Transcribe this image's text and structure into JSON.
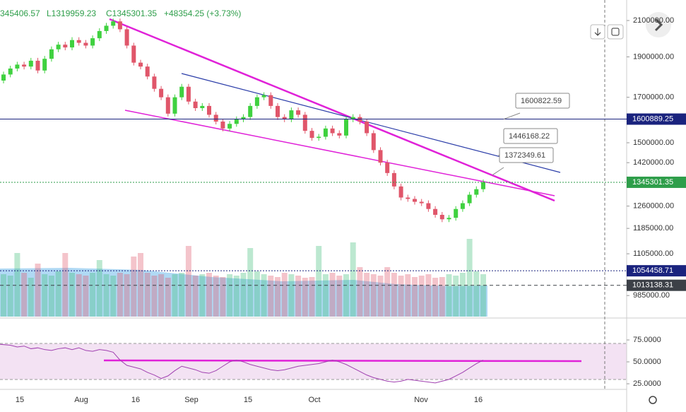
{
  "chart_data": {
    "type": "candlestick",
    "header": [
      "345406.57",
      "L1319959.23",
      "C1345301.35",
      "+48354.25 (+3.73%)"
    ],
    "first_open": 1780000,
    "closes": [
      1810000,
      1840000,
      1860000,
      1850000,
      1880000,
      1830000,
      1890000,
      1940000,
      1965000,
      1950000,
      1990000,
      1975000,
      1960000,
      2000000,
      2040000,
      2070000,
      2095000,
      2050000,
      1960000,
      1870000,
      1850000,
      1800000,
      1740000,
      1700000,
      1625000,
      1700000,
      1750000,
      1680000,
      1650000,
      1660000,
      1620000,
      1590000,
      1560000,
      1580000,
      1600000,
      1610000,
      1660000,
      1700000,
      1710000,
      1660000,
      1610000,
      1600000,
      1640000,
      1620000,
      1550000,
      1520000,
      1525000,
      1560000,
      1540000,
      1530000,
      1600000,
      1610000,
      1590000,
      1540000,
      1470000,
      1420000,
      1380000,
      1330000,
      1290000,
      1285000,
      1275000,
      1270000,
      1250000,
      1230000,
      1215000,
      1220000,
      1250000,
      1270000,
      1300000,
      1320000,
      1345301
    ],
    "volume": [
      60,
      58,
      90,
      62,
      55,
      75,
      60,
      58,
      64,
      90,
      62,
      60,
      58,
      62,
      80,
      60,
      58,
      62,
      60,
      85,
      90,
      62,
      58,
      60,
      55,
      60,
      62,
      100,
      58,
      60,
      62,
      58,
      56,
      60,
      58,
      62,
      97,
      64,
      60,
      58,
      56,
      62,
      60,
      58,
      55,
      56,
      100,
      60,
      62,
      58,
      60,
      105,
      70,
      62,
      60,
      58,
      70,
      62,
      58,
      60,
      56,
      58,
      60,
      55,
      56,
      60,
      58,
      62,
      110,
      64,
      60
    ],
    "rsi": [
      70,
      69,
      67,
      68,
      65,
      66,
      64,
      63,
      65,
      66,
      64,
      66,
      63,
      62,
      64,
      63,
      61,
      52,
      46,
      44,
      42,
      38,
      35,
      31,
      34,
      40,
      45,
      43,
      41,
      38,
      37,
      40,
      45,
      50,
      52,
      50,
      47,
      45,
      43,
      41,
      40,
      41,
      43,
      45,
      46,
      47,
      48,
      50,
      52,
      50,
      47,
      43,
      39,
      35,
      32,
      30,
      28,
      27,
      28,
      30,
      29,
      28,
      27,
      26,
      28,
      30,
      34,
      38,
      43,
      48,
      52
    ],
    "ylim": [
      929500,
      2222000
    ],
    "yticks": [
      {
        "value": 2100000,
        "label": "2100000.00"
      },
      {
        "value": 1900000,
        "label": "1900000.00"
      },
      {
        "value": 1700000,
        "label": "1700000.00"
      },
      {
        "value": 1500000,
        "label": "1500000.00"
      },
      {
        "value": 1420000,
        "label": "1420000.00"
      },
      {
        "value": 1260000,
        "label": "1260000.00"
      },
      {
        "value": 1185000,
        "label": "1185000.00"
      },
      {
        "value": 1105000,
        "label": "1105000.00"
      },
      {
        "value": 985000,
        "label": "985000.00"
      }
    ],
    "price_tags": [
      {
        "value": 1600889.25,
        "label": "1600889.25",
        "color": "#1a237e"
      },
      {
        "value": 1345301.35,
        "label": "1345301.35",
        "color": "#2e9e4a"
      },
      {
        "value": 1054458.71,
        "label": "1054458.71",
        "color": "#1a237e"
      },
      {
        "value": 1013138.31,
        "label": "1013138.31",
        "color": "#3c4047"
      }
    ],
    "callouts": [
      {
        "value": 1600822.59,
        "label": "1600822.59"
      },
      {
        "value": 1446168.22,
        "label": "1446168.22"
      },
      {
        "value": 1372349.61,
        "label": "1372349.61"
      }
    ],
    "rsi_ylim": [
      19.4,
      98.4
    ],
    "rsi_ticks": [
      {
        "value": 75,
        "label": "75.0000"
      },
      {
        "value": 50,
        "label": "50.0000"
      },
      {
        "value": 25,
        "label": "25.0000"
      }
    ],
    "dates": [
      "15",
      "Aug",
      "16",
      "Sep",
      "15",
      "Oct",
      "Nov",
      "16"
    ],
    "up_color": "#3fd13f",
    "down_color": "#e0566a"
  }
}
